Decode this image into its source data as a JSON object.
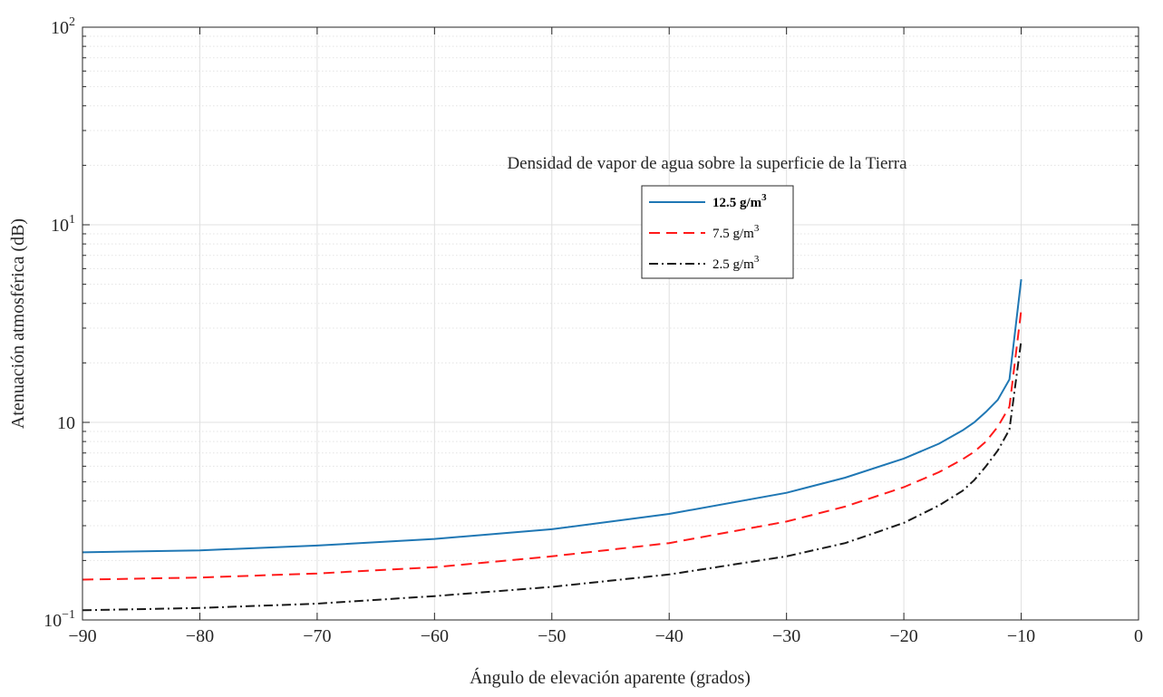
{
  "chart_data": {
    "type": "line",
    "title": "",
    "annotation": "Densidad de vapor de agua sobre la superficie de la Tierra",
    "xlabel": "Ángulo de elevación aparente (grados)",
    "ylabel": "Atenuación atmosférica (dB)",
    "xlim": [
      -90,
      0
    ],
    "ylim": [
      0.1,
      100
    ],
    "y_scale": "log",
    "grid": true,
    "legend_position": "center",
    "x_ticks": [
      -90,
      -80,
      -70,
      -60,
      -50,
      -40,
      -30,
      -20,
      -10,
      0
    ],
    "x_tick_labels": [
      "−90",
      "−80",
      "−70",
      "−60",
      "−50",
      "−40",
      "−30",
      "−20",
      "−10",
      "0"
    ],
    "y_ticks": [
      {
        "value": 0.1,
        "base": "10",
        "exp": "−1"
      },
      {
        "value": 1,
        "base": "10",
        "exp": ""
      },
      {
        "value": 10,
        "base": "10",
        "exp": "1"
      },
      {
        "value": 100,
        "base": "10",
        "exp": "2"
      }
    ],
    "x": [
      -90,
      -80,
      -70,
      -60,
      -50,
      -40,
      -30,
      -25,
      -20,
      -17,
      -15,
      -14,
      -13,
      -12,
      -11,
      -10
    ],
    "series": [
      {
        "name": "12.5 g/m",
        "name_sup": "3",
        "color": "#1f77b4",
        "dash": "solid",
        "values": [
          0.22,
          0.225,
          0.238,
          0.257,
          0.288,
          0.344,
          0.44,
          0.525,
          0.656,
          0.78,
          0.91,
          1.0,
          1.13,
          1.3,
          1.65,
          5.3
        ]
      },
      {
        "name": "7.5 g/m",
        "name_sup": "3",
        "color": "#ff1a1a",
        "dash": "dashed",
        "values": [
          0.16,
          0.164,
          0.172,
          0.185,
          0.21,
          0.245,
          0.315,
          0.375,
          0.47,
          0.56,
          0.65,
          0.71,
          0.8,
          0.95,
          1.2,
          3.7
        ]
      },
      {
        "name": "2.5 g/m",
        "name_sup": "3",
        "color": "#1a1a1a",
        "dash": "dashdot",
        "values": [
          0.112,
          0.115,
          0.121,
          0.132,
          0.147,
          0.17,
          0.21,
          0.245,
          0.31,
          0.38,
          0.45,
          0.51,
          0.6,
          0.72,
          0.92,
          2.6
        ]
      }
    ]
  }
}
